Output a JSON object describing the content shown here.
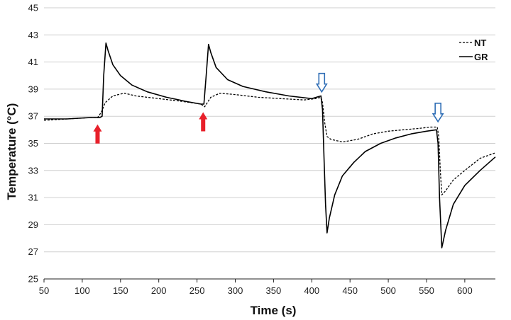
{
  "chart_data": {
    "type": "line",
    "title": "",
    "xlabel": "Time (s)",
    "ylabel": "Temperature (°C)",
    "xlim": [
      50,
      640
    ],
    "ylim": [
      25,
      45
    ],
    "xticks": [
      50,
      100,
      150,
      200,
      250,
      300,
      350,
      400,
      450,
      500,
      550,
      600
    ],
    "yticks": [
      25,
      27,
      29,
      31,
      33,
      35,
      37,
      39,
      41,
      43,
      45
    ],
    "grid": "horizontal",
    "legend_position": "top-right",
    "series": [
      {
        "name": "NT",
        "style": "dashed",
        "color": "#000000",
        "points": [
          [
            50,
            36.7
          ],
          [
            80,
            36.8
          ],
          [
            110,
            36.9
          ],
          [
            120,
            36.9
          ],
          [
            125,
            37.3
          ],
          [
            130,
            38.0
          ],
          [
            140,
            38.5
          ],
          [
            155,
            38.7
          ],
          [
            170,
            38.5
          ],
          [
            200,
            38.3
          ],
          [
            230,
            38.1
          ],
          [
            255,
            37.9
          ],
          [
            260,
            37.7
          ],
          [
            268,
            38.4
          ],
          [
            280,
            38.7
          ],
          [
            300,
            38.6
          ],
          [
            330,
            38.4
          ],
          [
            360,
            38.3
          ],
          [
            390,
            38.2
          ],
          [
            405,
            38.3
          ],
          [
            412,
            38.4
          ],
          [
            414,
            38.0
          ],
          [
            417,
            36.5
          ],
          [
            420,
            35.5
          ],
          [
            425,
            35.3
          ],
          [
            440,
            35.1
          ],
          [
            460,
            35.3
          ],
          [
            480,
            35.7
          ],
          [
            500,
            35.9
          ],
          [
            520,
            36.0
          ],
          [
            540,
            36.1
          ],
          [
            555,
            36.2
          ],
          [
            564,
            36.2
          ],
          [
            566,
            35.5
          ],
          [
            568,
            33.0
          ],
          [
            570,
            31.2
          ],
          [
            575,
            31.5
          ],
          [
            585,
            32.3
          ],
          [
            600,
            33.0
          ],
          [
            620,
            33.9
          ],
          [
            640,
            34.3
          ]
        ]
      },
      {
        "name": "GR",
        "style": "solid",
        "color": "#000000",
        "points": [
          [
            50,
            36.8
          ],
          [
            80,
            36.8
          ],
          [
            110,
            36.9
          ],
          [
            123,
            36.9
          ],
          [
            126,
            37.0
          ],
          [
            128,
            40.0
          ],
          [
            131,
            42.4
          ],
          [
            134,
            41.8
          ],
          [
            140,
            40.8
          ],
          [
            150,
            40.0
          ],
          [
            165,
            39.3
          ],
          [
            185,
            38.8
          ],
          [
            210,
            38.4
          ],
          [
            235,
            38.1
          ],
          [
            255,
            37.9
          ],
          [
            259,
            37.9
          ],
          [
            262,
            40.0
          ],
          [
            265,
            42.3
          ],
          [
            268,
            41.7
          ],
          [
            275,
            40.6
          ],
          [
            290,
            39.7
          ],
          [
            310,
            39.2
          ],
          [
            340,
            38.8
          ],
          [
            370,
            38.5
          ],
          [
            400,
            38.3
          ],
          [
            412,
            38.5
          ],
          [
            414,
            37.5
          ],
          [
            416,
            34.0
          ],
          [
            418,
            30.5
          ],
          [
            420,
            28.4
          ],
          [
            423,
            29.5
          ],
          [
            430,
            31.2
          ],
          [
            440,
            32.6
          ],
          [
            455,
            33.6
          ],
          [
            470,
            34.4
          ],
          [
            490,
            35.0
          ],
          [
            510,
            35.4
          ],
          [
            530,
            35.7
          ],
          [
            550,
            35.9
          ],
          [
            563,
            36.0
          ],
          [
            565,
            35.0
          ],
          [
            567,
            31.0
          ],
          [
            570,
            27.3
          ],
          [
            575,
            28.6
          ],
          [
            585,
            30.5
          ],
          [
            600,
            31.9
          ],
          [
            620,
            33.0
          ],
          [
            640,
            34.0
          ]
        ]
      }
    ],
    "annotations": [
      {
        "marker": "red-arrow-up",
        "x": 120,
        "y": 36.4
      },
      {
        "marker": "red-arrow-up",
        "x": 258,
        "y": 37.3
      },
      {
        "marker": "blue-arrow-down",
        "x": 413,
        "y": 38.8
      },
      {
        "marker": "blue-arrow-down",
        "x": 565,
        "y": 36.6
      }
    ]
  },
  "colors": {
    "heating_arrow": "#e8202a",
    "cooling_arrow": "#2e6db5",
    "grid": "#cfcfcf",
    "line": "#000000"
  }
}
